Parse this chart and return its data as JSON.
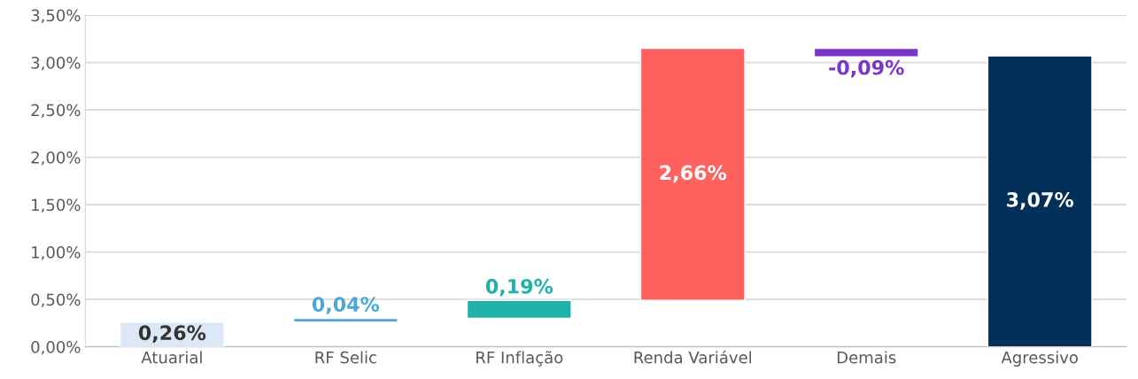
{
  "chart_data": {
    "type": "bar",
    "categories": [
      "Atuarial",
      "RF Selic",
      "RF Inflação",
      "Renda Variável",
      "Demais",
      "Agressivo"
    ],
    "values": [
      0.26,
      0.04,
      0.19,
      2.66,
      -0.09,
      3.07
    ],
    "base": [
      0,
      0.26,
      0.3,
      0.49,
      3.15,
      0
    ],
    "colors": [
      "#dce8f5",
      "#4aa8d8",
      "#20b2aa",
      "#ff625e",
      "#7b35c8",
      "#023059"
    ],
    "value_labels": [
      "0,26%",
      "0,04%",
      "0,19%",
      "2,66%",
      "-0,09%",
      "3,07%"
    ],
    "ylim": [
      0,
      3.5
    ],
    "yticks": [
      {
        "value": 0,
        "label": "0,00%"
      },
      {
        "value": 0.5,
        "label": "0,50%"
      },
      {
        "value": 1.0,
        "label": "1,00%"
      },
      {
        "value": 1.5,
        "label": "1,50%"
      },
      {
        "value": 2.0,
        "label": "2,00%"
      },
      {
        "value": 2.5,
        "label": "2,50%"
      },
      {
        "value": 3.0,
        "label": "3,00%"
      },
      {
        "value": 3.5,
        "label": "3,50%"
      }
    ],
    "grid": "y"
  }
}
